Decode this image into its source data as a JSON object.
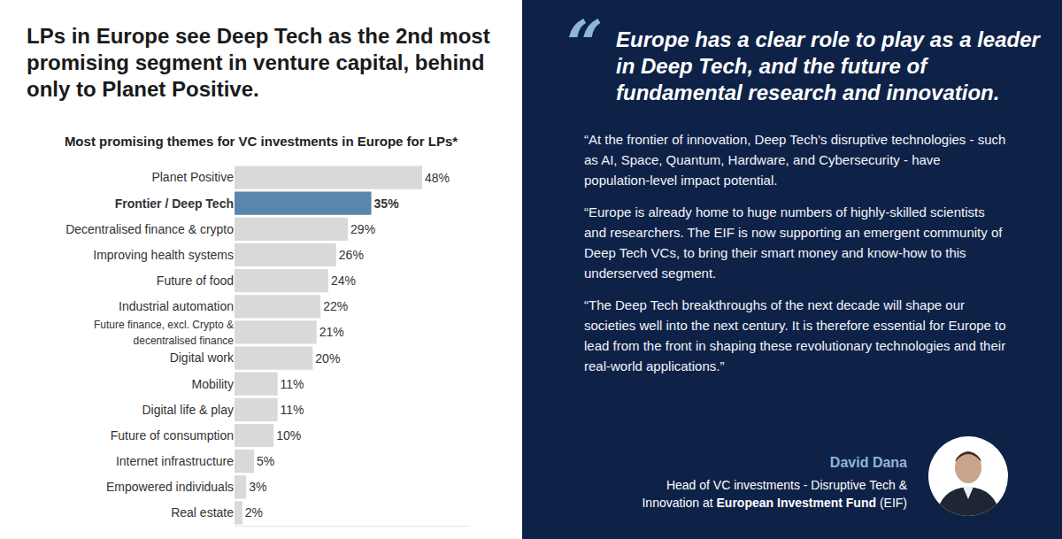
{
  "headline": "LPs in Europe see Deep Tech as the 2nd most promising segment in venture capital, behind only to Planet Positive.",
  "chart_data": {
    "type": "bar",
    "title": "Most promising themes for VC investments in Europe for LPs*",
    "orientation": "horizontal",
    "categories": [
      "Planet Positive",
      "Frontier / Deep Tech",
      "Decentralised finance & crypto",
      "Improving health systems",
      "Future of food",
      "Industrial automation",
      "Future finance, excl. Crypto & decentralised finance",
      "Digital work",
      "Mobility",
      "Digital life & play",
      "Future of consumption",
      "Internet infrastructure",
      "Empowered individuals",
      "Real estate"
    ],
    "values": [
      48,
      35,
      29,
      26,
      24,
      22,
      21,
      20,
      11,
      11,
      10,
      5,
      3,
      2
    ],
    "value_labels": [
      "48%",
      "35%",
      "29%",
      "26%",
      "24%",
      "22%",
      "21%",
      "20%",
      "11%",
      "11%",
      "10%",
      "5%",
      "3%",
      "2%"
    ],
    "colors": [
      "#d9d9d9",
      "#5a86ab",
      "#d9d9d9",
      "#d9d9d9",
      "#d9d9d9",
      "#d9d9d9",
      "#d9d9d9",
      "#d9d9d9",
      "#d9d9d9",
      "#d9d9d9",
      "#d9d9d9",
      "#d9d9d9",
      "#d9d9d9",
      "#d9d9d9"
    ],
    "xlim": [
      0,
      60
    ],
    "data_labels": true,
    "tick_labels": "y",
    "grid": false
  },
  "quote": {
    "mark": "“",
    "heading": "Europe has a clear role to play as a leader in Deep Tech, and the future of fundamental research and innovation.",
    "paragraphs": [
      "“At the frontier of innovation, Deep Tech’s disruptive technologies - such as AI, Space, Quantum, Hardware, and Cybersecurity - have population-level impact potential.",
      "“Europe is already home to huge numbers of highly-skilled scientists and researchers. The EIF is now supporting an emergent community of Deep Tech VCs, to bring their smart money and know-how to this underserved segment.",
      "“The Deep Tech breakthroughs of the next decade will shape our societies well into the next century. It is therefore essential for Europe to lead from the front in shaping these revolutionary technologies and their real-world applications.”"
    ],
    "name": "David Dana",
    "role": "Head of VC investments - Disruptive Tech & Innovation at",
    "organisation": "European Investment Fund",
    "organisation_suffix": "(EIF)"
  }
}
